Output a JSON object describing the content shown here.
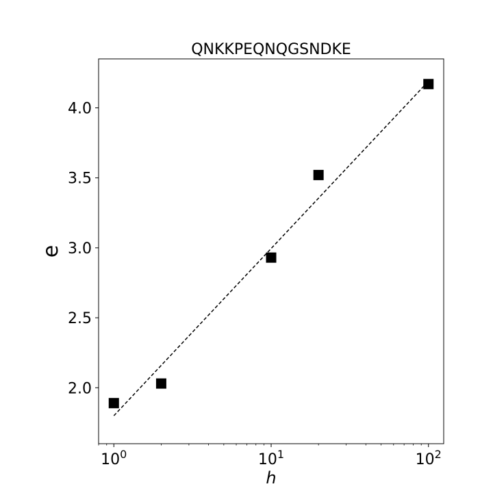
{
  "chart_data": {
    "type": "scatter",
    "title": "QNKKPEQNQGSNDKE",
    "xlabel": "h",
    "ylabel": "e",
    "x_scale": "log",
    "xlim": [
      0.8,
      125
    ],
    "ylim": [
      1.6,
      4.35
    ],
    "grid": false,
    "x_ticks": [
      {
        "value": 1,
        "base": "10",
        "exp": "0"
      },
      {
        "value": 10,
        "base": "10",
        "exp": "1"
      },
      {
        "value": 100,
        "base": "10",
        "exp": "2"
      }
    ],
    "y_ticks": [
      {
        "value": 2.0,
        "label": "2.0"
      },
      {
        "value": 2.5,
        "label": "2.5"
      },
      {
        "value": 3.0,
        "label": "3.0"
      },
      {
        "value": 3.5,
        "label": "3.5"
      },
      {
        "value": 4.0,
        "label": "4.0"
      }
    ],
    "series": [
      {
        "marker": "square",
        "color": "#000000",
        "points": [
          {
            "x": 1,
            "y": 1.89
          },
          {
            "x": 2,
            "y": 2.03
          },
          {
            "x": 10,
            "y": 2.93
          },
          {
            "x": 20,
            "y": 3.52
          },
          {
            "x": 100,
            "y": 4.17
          }
        ]
      }
    ],
    "fit_line": {
      "style": "dashed",
      "color": "#000000",
      "x": [
        1,
        100
      ],
      "y": [
        1.8,
        4.19
      ]
    }
  }
}
